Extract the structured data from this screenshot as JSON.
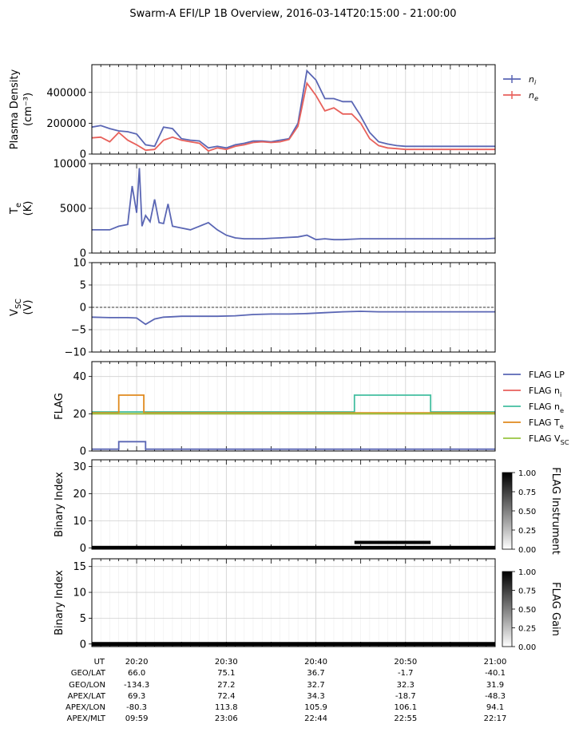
{
  "figure": {
    "title": "Swarm-A EFI/LP 1B Overview, 2016-03-14T20:15:00 - 21:00:00"
  },
  "chart_data": [
    {
      "type": "line",
      "id": "density",
      "ylabel_lines": [
        "Plasma Density",
        "(cm⁻³)"
      ],
      "ylim": [
        0,
        580000
      ],
      "yticks": [
        0,
        200000,
        400000
      ],
      "ytick_labels": [
        "0",
        "200000",
        "400000"
      ],
      "grid": true,
      "legend_placement": "outside-right",
      "series": [
        {
          "name": "n_i",
          "label_text": "n",
          "label_sub": "i",
          "color": "#5a66b4",
          "x": [
            0,
            1,
            2,
            3,
            4,
            5,
            6,
            7,
            8,
            9,
            10,
            11,
            12,
            13,
            14,
            15,
            16,
            17,
            18,
            19,
            20,
            21,
            22,
            23,
            24,
            25,
            26,
            27,
            28,
            29,
            30,
            31,
            32,
            33,
            34,
            35,
            36,
            37,
            38,
            39,
            40,
            41,
            42,
            43,
            44,
            45
          ],
          "y": [
            175000,
            185000,
            165000,
            150000,
            145000,
            130000,
            60000,
            50000,
            175000,
            165000,
            100000,
            90000,
            85000,
            40000,
            50000,
            40000,
            60000,
            70000,
            85000,
            85000,
            80000,
            90000,
            100000,
            200000,
            540000,
            480000,
            360000,
            360000,
            340000,
            340000,
            245000,
            140000,
            80000,
            65000,
            55000,
            50000,
            50000,
            50000,
            50000,
            50000,
            50000,
            50000,
            50000,
            50000,
            50000,
            50000
          ]
        },
        {
          "name": "n_e",
          "label_text": "n",
          "label_sub": "e",
          "color": "#e8615b",
          "x": [
            0,
            1,
            2,
            3,
            4,
            5,
            6,
            7,
            8,
            9,
            10,
            11,
            12,
            13,
            14,
            15,
            16,
            17,
            18,
            19,
            20,
            21,
            22,
            23,
            24,
            25,
            26,
            27,
            28,
            29,
            30,
            31,
            32,
            33,
            34,
            35,
            36,
            37,
            38,
            39,
            40,
            41,
            42,
            43,
            44,
            45
          ],
          "y": [
            105000,
            110000,
            80000,
            140000,
            90000,
            60000,
            25000,
            30000,
            90000,
            110000,
            90000,
            80000,
            70000,
            20000,
            40000,
            30000,
            50000,
            60000,
            75000,
            80000,
            75000,
            80000,
            95000,
            180000,
            460000,
            380000,
            280000,
            300000,
            260000,
            260000,
            200000,
            100000,
            55000,
            40000,
            35000,
            30000,
            30000,
            30000,
            30000,
            30000,
            30000,
            30000,
            30000,
            30000,
            30000,
            30000
          ]
        }
      ]
    },
    {
      "type": "line",
      "id": "te",
      "ylabel_lines": [
        "T_e",
        "(K)"
      ],
      "ylim": [
        0,
        10000
      ],
      "yticks": [
        0,
        5000,
        10000
      ],
      "ytick_labels": [
        "0",
        "5000",
        "10000"
      ],
      "grid": true,
      "series": [
        {
          "name": "T_e",
          "color": "#5a66b4",
          "x": [
            0,
            2,
            3,
            4,
            4.5,
            5,
            5.3,
            5.6,
            6,
            6.5,
            7,
            7.5,
            8,
            8.5,
            9,
            10,
            11,
            12,
            13,
            14,
            15,
            16,
            17,
            18,
            19,
            20,
            21,
            22,
            23,
            24,
            25,
            26,
            27,
            28,
            29,
            30,
            31,
            32,
            33,
            34,
            35,
            36,
            37,
            38,
            39,
            40,
            41,
            42,
            43,
            44,
            45
          ],
          "y": [
            2600,
            2600,
            3000,
            3200,
            7500,
            4500,
            9500,
            3000,
            4200,
            3500,
            6000,
            3400,
            3300,
            5500,
            3000,
            2800,
            2600,
            3000,
            3400,
            2600,
            2000,
            1700,
            1600,
            1600,
            1600,
            1650,
            1700,
            1750,
            1800,
            2000,
            1500,
            1600,
            1500,
            1500,
            1550,
            1600,
            1600,
            1600,
            1600,
            1600,
            1600,
            1600,
            1600,
            1600,
            1600,
            1600,
            1600,
            1600,
            1600,
            1600,
            1650
          ]
        }
      ]
    },
    {
      "type": "line",
      "id": "vsc",
      "ylabel_lines": [
        "V_SC",
        "(V)"
      ],
      "ylim": [
        -10,
        10
      ],
      "yticks": [
        -10,
        -5,
        0,
        5,
        10
      ],
      "ytick_labels": [
        "−10",
        "−5",
        "0",
        "5",
        "10"
      ],
      "grid": true,
      "zero_line": true,
      "series": [
        {
          "name": "V_SC",
          "color": "#5a66b4",
          "x": [
            0,
            2,
            4,
            5,
            6,
            7,
            8,
            9,
            10,
            12,
            13,
            14,
            16,
            18,
            20,
            22,
            24,
            26,
            28,
            30,
            32,
            34,
            36,
            38,
            40,
            42,
            44,
            45
          ],
          "y": [
            -2.2,
            -2.3,
            -2.3,
            -2.4,
            -3.8,
            -2.6,
            -2.2,
            -2.1,
            -2.0,
            -2.0,
            -2.0,
            -2.0,
            -1.9,
            -1.6,
            -1.5,
            -1.5,
            -1.4,
            -1.2,
            -1.0,
            -0.9,
            -1.0,
            -1.0,
            -1.0,
            -1.0,
            -1.0,
            -1.0,
            -1.0,
            -1.0
          ]
        }
      ]
    },
    {
      "type": "line",
      "id": "flag",
      "ylabel_lines": [
        "FLAG"
      ],
      "ylim": [
        0,
        48
      ],
      "yticks": [
        0,
        20,
        40
      ],
      "ytick_labels": [
        "0",
        "20",
        "40"
      ],
      "grid": true,
      "legend_placement": "outside-right",
      "series": [
        {
          "name": "FLAG LP",
          "color": "#5a66b4",
          "x": [
            0,
            3,
            3,
            6,
            6,
            8,
            8,
            45
          ],
          "y": [
            1,
            1,
            5,
            5,
            1,
            1,
            1,
            1
          ]
        },
        {
          "name": "FLAG n_i",
          "color": "#e8615b",
          "x": [
            0,
            45
          ],
          "y": [
            20,
            20
          ]
        },
        {
          "name": "FLAG n_e",
          "color": "#43bea0",
          "x": [
            0,
            29.3,
            29.3,
            37.8,
            37.8,
            45
          ],
          "y": [
            21,
            21,
            30,
            30,
            21,
            21
          ]
        },
        {
          "name": "FLAG T_e",
          "color": "#e08a1e",
          "x": [
            0,
            3,
            3,
            5.8,
            5.8,
            45
          ],
          "y": [
            20.5,
            20.5,
            30,
            30,
            20.5,
            20.5
          ]
        },
        {
          "name": "FLAG V_SC",
          "color": "#98c440",
          "x": [
            0,
            45
          ],
          "y": [
            20,
            20
          ]
        }
      ]
    },
    {
      "type": "heatmap",
      "id": "flag_instrument",
      "ylabel_lines": [
        "Binary Index"
      ],
      "ylim": [
        -0.5,
        32.5
      ],
      "yticks": [
        0,
        10,
        20,
        30
      ],
      "ytick_labels": [
        "0",
        "10",
        "20",
        "30"
      ],
      "colorbar_label": "FLAG Instrument",
      "colorbar_ticks": [
        "0.00",
        "0.25",
        "0.50",
        "0.75",
        "1.00"
      ]
    },
    {
      "type": "heatmap",
      "id": "flag_gain",
      "ylabel_lines": [
        "Binary Index"
      ],
      "ylim": [
        -0.5,
        16.5
      ],
      "yticks": [
        0,
        5,
        10,
        15
      ],
      "ytick_labels": [
        "0",
        "5",
        "10",
        "15"
      ],
      "colorbar_label": "FLAG Gain",
      "colorbar_ticks": [
        "0.00",
        "0.25",
        "0.50",
        "0.75",
        "1.00"
      ]
    }
  ],
  "x_axis": {
    "start": "20:15:00",
    "end": "21:00:00",
    "row_labels": [
      "UT",
      "GEO/LAT",
      "GEO/LON",
      "APEX/LAT",
      "APEX/LON",
      "APEX/MLT"
    ],
    "columns": [
      {
        "minute": 5,
        "values": [
          "20:20",
          "66.0",
          "-134.3",
          "69.3",
          "-80.3",
          "09:59"
        ]
      },
      {
        "minute": 15,
        "values": [
          "20:30",
          "75.1",
          "27.2",
          "72.4",
          "113.8",
          "23:06"
        ]
      },
      {
        "minute": 25,
        "values": [
          "20:40",
          "36.7",
          "32.7",
          "34.3",
          "105.9",
          "22:44"
        ]
      },
      {
        "minute": 35,
        "values": [
          "20:50",
          "-1.7",
          "32.3",
          "-18.7",
          "106.1",
          "22:55"
        ]
      },
      {
        "minute": 45,
        "values": [
          "21:00",
          "-40.1",
          "31.9",
          "-48.3",
          "94.1",
          "22:17"
        ]
      }
    ]
  }
}
